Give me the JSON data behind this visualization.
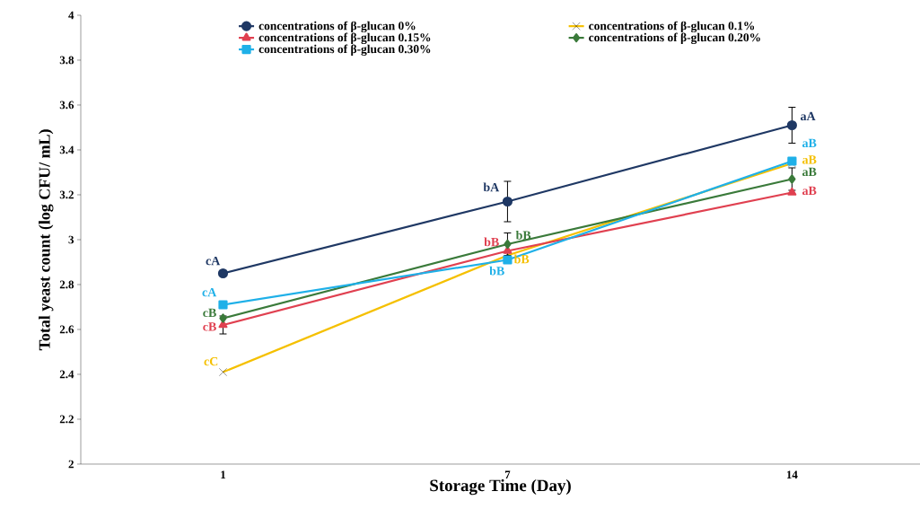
{
  "chart_data": {
    "type": "line",
    "xlabel": "Storage Time (Day)",
    "ylabel": "Total yeast count (log CFU/ mL)",
    "categories": [
      "1",
      "7",
      "14"
    ],
    "ylim": [
      2,
      4
    ],
    "yticks": [
      2,
      2.2,
      2.4,
      2.6,
      2.8,
      3,
      3.2,
      3.4,
      3.6,
      3.8,
      4
    ],
    "legend": "top",
    "grid": false,
    "series": [
      {
        "name": "concentrations of β-glucan 0%",
        "color": "#1f3864",
        "marker": "circle",
        "values": [
          2.85,
          3.17,
          3.51
        ],
        "errors": [
          null,
          0.09,
          0.08
        ],
        "value_labels": [
          "cA",
          "bA",
          "aA"
        ]
      },
      {
        "name": "concentrations of β-glucan 0.1%",
        "color": "#f5c000",
        "marker": "cross",
        "values": [
          2.41,
          2.93,
          3.34
        ],
        "value_labels": [
          "cC",
          "bB",
          "aB"
        ]
      },
      {
        "name": "concentrations of β-glucan 0.15%",
        "color": "#e04050",
        "marker": "triangle",
        "values": [
          2.62,
          2.95,
          3.21
        ],
        "errors": [
          0.04,
          null,
          null
        ],
        "value_labels": [
          "cB",
          "bB",
          "aB"
        ]
      },
      {
        "name": "concentrations of β-glucan 0.20%",
        "color": "#3a7a3a",
        "marker": "diamond",
        "values": [
          2.65,
          2.98,
          3.27
        ],
        "errors": [
          null,
          0.05,
          0.05
        ],
        "value_labels": [
          "cB",
          "bB",
          "aB"
        ]
      },
      {
        "name": "concentrations of β-glucan 0.30%",
        "color": "#1fb0e8",
        "marker": "square",
        "values": [
          2.71,
          2.91,
          3.35
        ],
        "value_labels": [
          "cA",
          "bB",
          "aB"
        ]
      }
    ]
  }
}
